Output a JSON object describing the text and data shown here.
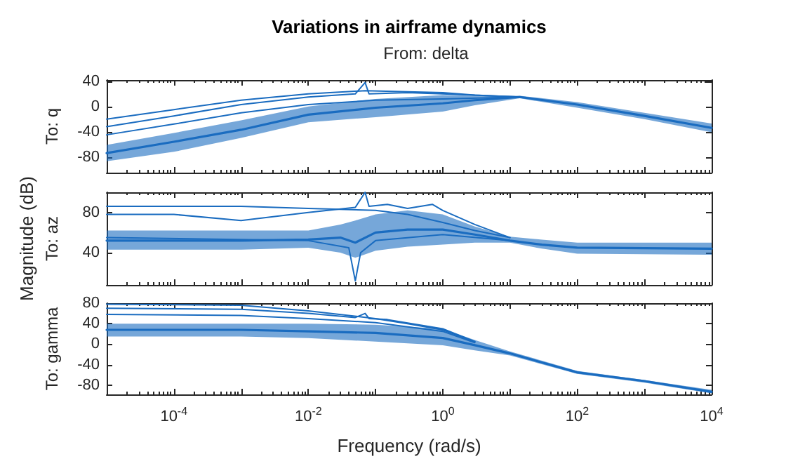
{
  "chart_data": [
    {
      "type": "line",
      "title": "Variations in airframe dynamics",
      "subtitle": "From: delta",
      "ylabel": "To: q",
      "log": "x",
      "tick_labels": "y",
      "xlim": [
        1e-05,
        10000
      ],
      "xticks": [
        {
          "value": 1e-05,
          "label": null
        },
        {
          "value": 0.0001,
          "label": null
        },
        {
          "value": 0.001,
          "label": null
        },
        {
          "value": 0.01,
          "label": null
        },
        {
          "value": 0.1,
          "label": null
        },
        {
          "value": 1,
          "label": null
        },
        {
          "value": 10,
          "label": null
        },
        {
          "value": 100,
          "label": null
        },
        {
          "value": 1000,
          "label": null
        },
        {
          "value": 10000,
          "label": null
        }
      ],
      "ylim": [
        -105,
        42
      ],
      "yticks": [
        -80,
        -40,
        0,
        40
      ],
      "series": [
        {
          "color": "#1a6cc0",
          "x": [
            1e-05,
            0.0001,
            0.001,
            0.01,
            0.1,
            1,
            3,
            14,
            100,
            1000,
            10000
          ],
          "values": [
            -74,
            -56,
            -37,
            -13,
            -2,
            5,
            10,
            15,
            3,
            -15,
            -34
          ],
          "lower": [
            -87,
            -72,
            -50,
            -25,
            -17,
            -8,
            2,
            13,
            -2,
            -20,
            -41
          ],
          "upper": [
            -61,
            -42,
            -22,
            0,
            12,
            18,
            17,
            17,
            7,
            -10,
            -27
          ]
        },
        {
          "color": "#1a6cc0",
          "x": [
            1e-05,
            0.0001,
            0.001,
            0.01,
            0.07,
            1,
            3,
            14
          ],
          "values": [
            -20,
            -5,
            10,
            20,
            25,
            22,
            18,
            15
          ]
        },
        {
          "color": "#1a6cc0",
          "x": [
            1e-05,
            0.0001,
            0.001,
            0.01,
            0.05,
            0.07,
            0.08,
            0.3,
            1,
            14
          ],
          "values": [
            -32,
            -15,
            3,
            15,
            20,
            38,
            20,
            22,
            20,
            15
          ]
        },
        {
          "color": "#1a6cc0",
          "x": [
            1e-05,
            0.0001,
            0.001,
            0.01,
            0.1,
            1,
            14
          ],
          "values": [
            -45,
            -28,
            -10,
            3,
            10,
            12,
            15
          ]
        }
      ]
    },
    {
      "type": "line",
      "ylabel": "To: az",
      "annotations": [
        "Magnitude (dB)"
      ],
      "log": "x",
      "tick_labels": "y",
      "xlim": [
        1e-05,
        10000
      ],
      "xticks": [
        {
          "value": 1e-05,
          "label": null
        },
        {
          "value": 0.0001,
          "label": null
        },
        {
          "value": 0.001,
          "label": null
        },
        {
          "value": 0.01,
          "label": null
        },
        {
          "value": 0.1,
          "label": null
        },
        {
          "value": 1,
          "label": null
        },
        {
          "value": 10,
          "label": null
        },
        {
          "value": 100,
          "label": null
        },
        {
          "value": 1000,
          "label": null
        },
        {
          "value": 10000,
          "label": null
        }
      ],
      "ylim": [
        8,
        100
      ],
      "yticks": [
        40,
        80
      ],
      "series": [
        {
          "color": "#1a6cc0",
          "x": [
            1e-05,
            0.001,
            0.01,
            0.03,
            0.05,
            0.1,
            0.3,
            1,
            3,
            10,
            30,
            100,
            10000
          ],
          "values": [
            52,
            52,
            53,
            55,
            50,
            60,
            63,
            63,
            58,
            52,
            48,
            45,
            44
          ],
          "lower": [
            43,
            43,
            45,
            40,
            35,
            42,
            46,
            48,
            50,
            50,
            44,
            39,
            38
          ],
          "upper": [
            62,
            62,
            62,
            68,
            72,
            78,
            82,
            78,
            66,
            56,
            53,
            50,
            50
          ]
        },
        {
          "color": "#1a6cc0",
          "x": [
            1e-05,
            0.001,
            0.01,
            0.1,
            0.3,
            1,
            3,
            10
          ],
          "values": [
            86,
            86,
            84,
            82,
            78,
            70,
            62,
            55
          ]
        },
        {
          "color": "#1a6cc0",
          "x": [
            1e-05,
            0.0001,
            0.001,
            0.01,
            0.05,
            0.07,
            0.08,
            0.15,
            0.3,
            0.7,
            1,
            3,
            10
          ],
          "values": [
            78,
            78,
            72,
            80,
            85,
            100,
            86,
            88,
            84,
            88,
            82,
            68,
            55
          ]
        },
        {
          "color": "#1a6cc0",
          "x": [
            1e-05,
            0.01,
            0.04,
            0.05,
            0.06,
            0.1,
            1,
            10
          ],
          "values": [
            55,
            52,
            45,
            12,
            40,
            52,
            58,
            52
          ]
        }
      ]
    },
    {
      "type": "line",
      "ylabel": "To: gamma",
      "xlabel": "Frequency (rad/s)",
      "log": "x",
      "xlim": [
        1e-05,
        10000
      ],
      "xticks": [
        {
          "value": 1e-05,
          "label": null
        },
        {
          "value": 0.0001,
          "label": "10$^{-4}$"
        },
        {
          "value": 0.001,
          "label": null
        },
        {
          "value": 0.01,
          "label": "10$^{-2}$"
        },
        {
          "value": 0.1,
          "label": null
        },
        {
          "value": 1,
          "label": "10$^{0}$"
        },
        {
          "value": 10,
          "label": null
        },
        {
          "value": 100,
          "label": "10$^{2}$"
        },
        {
          "value": 1000,
          "label": null
        },
        {
          "value": 10000,
          "label": "10$^{4}$"
        }
      ],
      "ylim": [
        -98,
        80
      ],
      "yticks": [
        -80,
        -40,
        0,
        40,
        80
      ],
      "series": [
        {
          "color": "#1a6cc0",
          "x": [
            1e-05,
            0.001,
            0.01,
            0.1,
            1,
            3,
            10,
            100,
            1000,
            10000
          ],
          "values": [
            28,
            28,
            25,
            22,
            12,
            -2,
            -18,
            -55,
            -72,
            -93
          ],
          "lower": [
            15,
            15,
            12,
            5,
            -2,
            -12,
            -22,
            -58,
            -75,
            -96
          ],
          "upper": [
            40,
            40,
            40,
            38,
            30,
            8,
            -14,
            -52,
            -70,
            -89
          ]
        },
        {
          "color": "#1a6cc0",
          "x": [
            1e-05,
            0.001,
            0.01,
            0.1,
            0.3,
            1,
            3
          ],
          "values": [
            78,
            76,
            65,
            50,
            40,
            28,
            5
          ]
        },
        {
          "color": "#1a6cc0",
          "x": [
            1e-05,
            0.001,
            0.01,
            0.05,
            0.07,
            0.08,
            0.15,
            1,
            3
          ],
          "values": [
            70,
            68,
            60,
            52,
            60,
            50,
            48,
            30,
            5
          ]
        },
        {
          "color": "#1a6cc0",
          "x": [
            1e-05,
            0.001,
            0.01,
            0.1,
            1,
            3
          ],
          "values": [
            58,
            56,
            50,
            42,
            25,
            3
          ]
        }
      ]
    }
  ]
}
